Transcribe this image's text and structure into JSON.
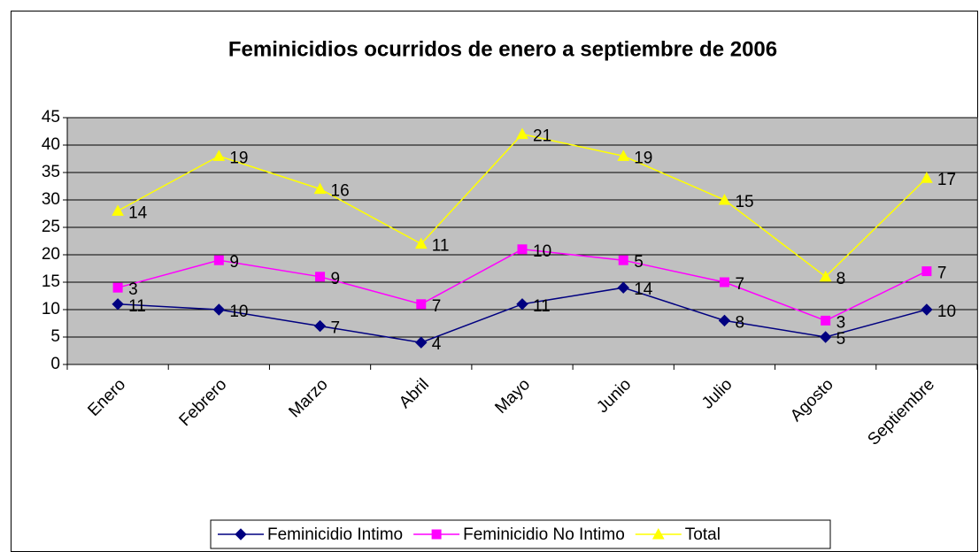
{
  "chart_data": {
    "type": "line",
    "stacked": true,
    "title": "Feminicidios ocurridos de enero a septiembre de 2006",
    "categories": [
      "Enero",
      "Febrero",
      "Marzo",
      "Abril",
      "Mayo",
      "Junio",
      "Julio",
      "Agosto",
      "Septiembre"
    ],
    "series": [
      {
        "name": "Feminicidio Intimo",
        "color": "#000080",
        "marker": "diamond",
        "values": [
          11,
          10,
          7,
          4,
          11,
          14,
          8,
          5,
          10
        ]
      },
      {
        "name": "Feminicidio No Intimo",
        "color": "#ff00ff",
        "marker": "square",
        "values": [
          3,
          9,
          9,
          7,
          10,
          5,
          7,
          3,
          7
        ]
      },
      {
        "name": "Total",
        "color": "#ffff00",
        "marker": "triangle",
        "values": [
          14,
          19,
          16,
          11,
          21,
          19,
          15,
          8,
          17
        ]
      }
    ],
    "ylim": [
      0,
      45
    ],
    "yticks": [
      0,
      5,
      10,
      15,
      20,
      25,
      30,
      35,
      40,
      45
    ],
    "grid": true,
    "legend": "bottom"
  }
}
